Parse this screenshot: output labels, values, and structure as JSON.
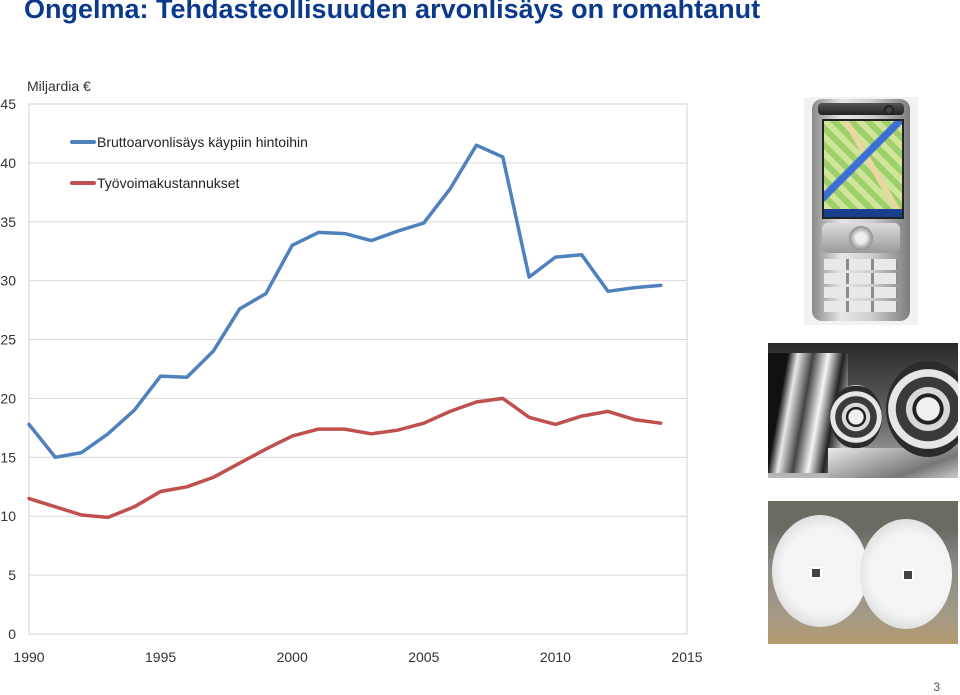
{
  "slide": {
    "title": "Ongelma: Tehdasteollisuuden arvonlisäys on romahtanut",
    "page_number": "3"
  },
  "chart_data": {
    "type": "line",
    "ylabel": "Miljardia €",
    "xlim": [
      1990,
      2015
    ],
    "ylim": [
      0,
      45
    ],
    "x_ticks": [
      1990,
      1995,
      2000,
      2005,
      2010,
      2015
    ],
    "y_ticks": [
      0,
      5,
      10,
      15,
      20,
      25,
      30,
      35,
      40,
      45
    ],
    "grid": true,
    "legend_position": "top-left",
    "x": [
      1990,
      1991,
      1992,
      1993,
      1994,
      1995,
      1996,
      1997,
      1998,
      1999,
      2000,
      2001,
      2002,
      2003,
      2004,
      2005,
      2006,
      2007,
      2008,
      2009,
      2010,
      2011,
      2012,
      2013,
      2014
    ],
    "series": [
      {
        "name": "Bruttoarvonlisäys käypiin hintoihin",
        "color": "#4f81bd",
        "values": [
          17.8,
          15.0,
          15.4,
          17.0,
          19.0,
          21.9,
          21.8,
          24.0,
          27.6,
          28.9,
          33.0,
          34.1,
          34.0,
          33.4,
          34.2,
          34.9,
          37.8,
          41.5,
          40.5,
          30.3,
          32.0,
          32.2,
          29.1,
          29.4,
          29.6
        ]
      },
      {
        "name": "Työvoimakustannukset",
        "color": "#c0504d",
        "values": [
          11.5,
          10.8,
          10.1,
          9.9,
          10.8,
          12.1,
          12.5,
          13.3,
          14.5,
          15.7,
          16.8,
          17.4,
          17.4,
          17.0,
          17.3,
          17.9,
          18.9,
          19.7,
          20.0,
          18.4,
          17.8,
          18.5,
          18.9,
          18.2,
          17.9
        ]
      }
    ]
  },
  "photos": {
    "phone": "mobile-phone-photo",
    "steel": "steel-coils-photo",
    "paper": "paper-rolls-photo"
  }
}
